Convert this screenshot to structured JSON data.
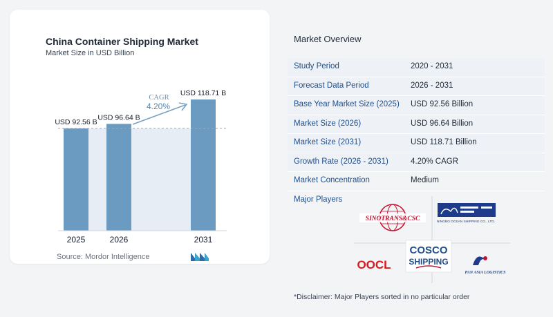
{
  "chart_data": {
    "type": "bar",
    "title": "China Container Shipping Market",
    "subtitle": "Market Size in USD Billion",
    "categories": [
      "2025",
      "2026",
      "2031"
    ],
    "values": [
      92.56,
      96.64,
      118.71
    ],
    "data_labels": [
      "USD 92.56 B",
      "USD 96.64 B",
      "USD 118.71 B"
    ],
    "cagr_label": "CAGR",
    "cagr_value": "4.20%",
    "colors": {
      "bar": "#6b9bc0",
      "band": "#e7edf4",
      "arrow": "#7aa1c2"
    }
  },
  "source": "Source:  Mordor Intelligence",
  "overview": {
    "title": "Market Overview",
    "rows": [
      {
        "label": "Study Period",
        "value": "2020 - 2031"
      },
      {
        "label": "Forecast Data Period",
        "value": "2026 - 2031"
      },
      {
        "label": "Base Year Market Size (2025)",
        "value": "USD 92.56 Billion"
      },
      {
        "label": "Market Size (2026)",
        "value": "USD 96.64 Billion"
      },
      {
        "label": "Market Size (2031)",
        "value": "USD 118.71 Billion"
      },
      {
        "label": "Growth Rate (2026 - 2031)",
        "value": "4.20% CAGR"
      },
      {
        "label": "Market Concentration",
        "value": "Medium"
      }
    ]
  },
  "players": {
    "label": "Major Players",
    "logos": {
      "sinotrans": "SINOTRANS&CSC",
      "ningbo": "NINGBO OCEAN SHIPPING CO., LTD.",
      "oocl": "OOCL",
      "cosco_top": "COSCO",
      "cosco_bottom": "SHIPPING",
      "pan_asia": "PAN ASIA LOGISTICS"
    }
  },
  "disclaimer": "*Disclaimer: Major Players sorted in no particular order"
}
